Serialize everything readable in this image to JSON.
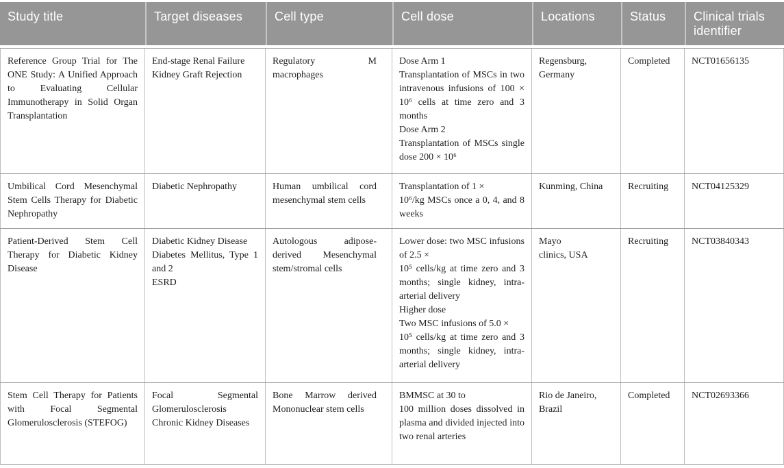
{
  "table": {
    "columns": [
      {
        "label": "Study title"
      },
      {
        "label": "Target diseases"
      },
      {
        "label": "Cell type"
      },
      {
        "label": "Cell dose"
      },
      {
        "label": "Locations"
      },
      {
        "label": "Status"
      },
      {
        "label": "Clinical trials identifier"
      }
    ],
    "rows": [
      {
        "study_title": "Reference Group Trial for The ONE Study: A Unified Approach to Evaluating Cellular Immunotherapy in Solid Organ Transplantation",
        "target_diseases": [
          "End-stage Renal Failure",
          "Kidney Graft Rejection"
        ],
        "cell_type": "Regulatory M macrophages",
        "cell_dose": [
          "Dose Arm 1",
          "Transplantation of MSCs in two intravenous infusions of 100 × 10⁶ cells at time zero and 3 months",
          "Dose Arm 2",
          "Transplantation of MSCs single dose 200 × 10⁶"
        ],
        "locations": [
          "Regensburg, Germany"
        ],
        "status": "Completed",
        "identifier": "NCT01656135"
      },
      {
        "study_title": "Umbilical Cord Mesenchymal Stem Cells Therapy for Diabetic Nephropathy",
        "target_diseases": [
          "Diabetic Nephropathy"
        ],
        "cell_type": "Human umbilical cord mesenchymal stem cells",
        "cell_dose": [
          "Transplantation of 1 ×",
          "10⁶/kg MSCs once a 0, 4, and 8 weeks"
        ],
        "locations": [
          "Kunming, China"
        ],
        "status": "Recruiting",
        "identifier": "NCT04125329"
      },
      {
        "study_title": "Patient-Derived Stem Cell Therapy for Diabetic Kidney Disease",
        "target_diseases": [
          "Diabetic Kidney Disease",
          "Diabetes Mellitus, Type 1 and 2",
          "ESRD"
        ],
        "cell_type": "Autologous adipose-derived Mesenchymal stem/stromal cells",
        "cell_dose": [
          "Lower dose: two MSC infusions of 2.5 ×",
          "10⁵ cells/kg at time zero and 3 months; single kidney, intra-arterial delivery",
          "Higher dose",
          "Two MSC infusions of 5.0 ×",
          "10⁵ cells/kg at time zero and 3 months; single kidney, intra-arterial delivery"
        ],
        "locations": [
          "Mayo",
          "clinics, USA"
        ],
        "status": "Recruiting",
        "identifier": "NCT03840343"
      },
      {
        "study_title": "Stem Cell Therapy for Patients with Focal Segmental Glomerulosclerosis (STEFOG)",
        "target_diseases": [
          "Focal Segmental Glomerulosclerosis",
          "Chronic Kidney Diseases"
        ],
        "cell_type": "Bone Marrow derived Mononuclear stem cells",
        "cell_dose": [
          "BMMSC at 30 to",
          "100 million doses dissolved in plasma and divided injected into two renal arteries"
        ],
        "locations": [
          "Rio de Janeiro, Brazil"
        ],
        "status": "Completed",
        "identifier": "NCT02693366"
      }
    ]
  },
  "colors": {
    "header_bg": "#969696",
    "header_text": "#ffffff",
    "header_separator": "#c6c6c6",
    "row_rule": "#9d9d9d",
    "column_rule": "#bdbdbd",
    "body_text": "#1e1e1e"
  }
}
